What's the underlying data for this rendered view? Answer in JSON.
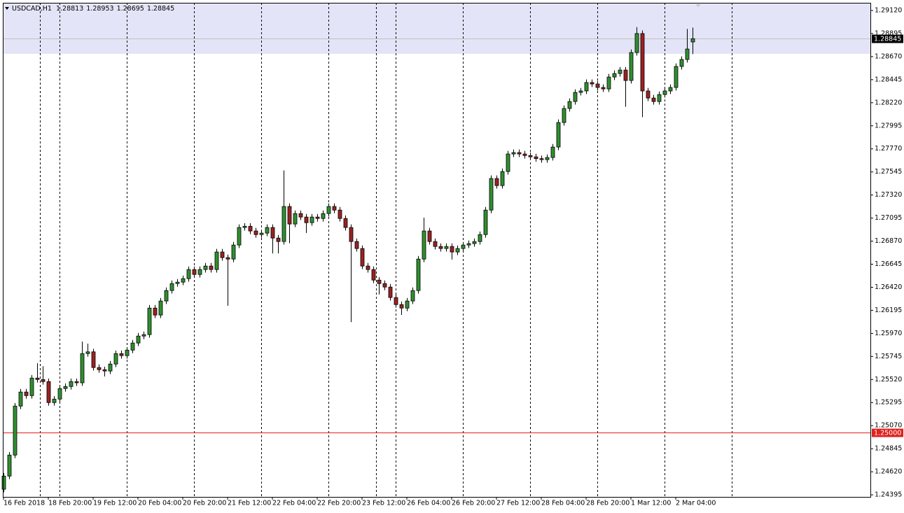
{
  "chart_data": {
    "type": "candlestick",
    "symbol": "USDCAD,H1",
    "categories": [
      "16 Feb 2018",
      null,
      null,
      null,
      null,
      null,
      null,
      null,
      "18 Feb 20:00",
      null,
      null,
      null,
      null,
      null,
      null,
      null,
      "19 Feb 12:00",
      null,
      null,
      null,
      null,
      null,
      null,
      null,
      "20 Feb 04:00",
      null,
      null,
      null,
      null,
      null,
      null,
      null,
      "20 Feb 20:00",
      null,
      null,
      null,
      null,
      null,
      null,
      null,
      "21 Feb 12:00",
      null,
      null,
      null,
      null,
      null,
      null,
      null,
      "22 Feb 04:00",
      null,
      null,
      null,
      null,
      null,
      null,
      null,
      "22 Feb 20:00",
      null,
      null,
      null,
      null,
      null,
      null,
      null,
      "23 Feb 12:00",
      null,
      null,
      null,
      null,
      null,
      null,
      null,
      "26 Feb 04:00",
      null,
      null,
      null,
      null,
      null,
      null,
      null,
      "26 Feb 20:00",
      null,
      null,
      null,
      null,
      null,
      null,
      null,
      "27 Feb 12:00",
      null,
      null,
      null,
      null,
      null,
      null,
      null,
      "28 Feb 04:00",
      null,
      null,
      null,
      null,
      null,
      null,
      null,
      "28 Feb 20:00",
      null,
      null,
      null,
      null,
      null,
      null,
      null,
      "1 Mar 12:00",
      null,
      null,
      null,
      null,
      null,
      null,
      null,
      "2 Mar 04:00",
      null,
      null,
      null
    ],
    "open": [
      1.2445,
      1.24578,
      1.24783,
      1.25261,
      1.25398,
      1.25363,
      1.25534,
      1.2552,
      1.255,
      1.25295,
      1.25329,
      1.25432,
      1.25452,
      1.255,
      1.25488,
      1.25773,
      1.2579,
      1.25637,
      1.25616,
      1.25603,
      1.25671,
      1.25773,
      1.25753,
      1.25807,
      1.25876,
      1.25944,
      1.25958,
      1.26217,
      1.26149,
      1.26286,
      1.26388,
      1.26456,
      1.2647,
      1.26504,
      1.26593,
      1.26545,
      1.26593,
      1.26627,
      1.26593,
      1.26764,
      1.26709,
      1.26695,
      1.26832,
      1.27003,
      1.27015,
      1.26969,
      1.26934,
      1.26948,
      1.27003,
      1.269,
      1.26866,
      1.27208,
      1.27037,
      1.27139,
      1.27105,
      1.2705,
      1.27105,
      1.27091,
      1.27139,
      1.27208,
      1.27173,
      1.27091,
      1.27003,
      1.26866,
      1.26798,
      1.26627,
      1.26593,
      1.2649,
      1.26456,
      1.26422,
      1.2632,
      1.26251,
      1.26217,
      1.26286,
      1.26388,
      1.26695,
      1.26969,
      1.26866,
      1.26818,
      1.26798,
      1.26818,
      1.26764,
      1.26798,
      1.26832,
      1.26846,
      1.26866,
      1.26934,
      1.27173,
      1.27481,
      1.27412,
      1.27549,
      1.2772,
      1.27734,
      1.2772,
      1.27705,
      1.27692,
      1.27675,
      1.27665,
      1.27686,
      1.27788,
      1.28027,
      1.28164,
      1.28232,
      1.28321,
      1.28335,
      1.28417,
      1.28403,
      1.28369,
      1.28355,
      1.28471,
      1.28505,
      1.28539,
      1.28437,
      1.2871,
      1.28895,
      1.28335,
      1.28266,
      1.28232,
      1.283,
      1.28335,
      1.28369,
      1.28574,
      1.28642,
      1.28813
    ],
    "high": [
      1.24608,
      1.24813,
      1.25291,
      1.25428,
      1.25428,
      1.25564,
      1.2568,
      1.2565,
      1.2553,
      1.25359,
      1.25462,
      1.25482,
      1.2553,
      1.2553,
      1.2589,
      1.2587,
      1.2582,
      1.25667,
      1.25646,
      1.25701,
      1.25803,
      1.25803,
      1.25837,
      1.25906,
      1.25974,
      1.25988,
      1.26247,
      1.26247,
      1.26316,
      1.26418,
      1.26486,
      1.265,
      1.26534,
      1.26623,
      1.26623,
      1.26623,
      1.26657,
      1.26657,
      1.26794,
      1.26794,
      1.26739,
      1.26862,
      1.27033,
      1.27045,
      1.27045,
      1.26999,
      1.26978,
      1.27033,
      1.27033,
      1.2693,
      1.2756,
      1.27238,
      1.27169,
      1.27169,
      1.27135,
      1.27135,
      1.27135,
      1.27169,
      1.27238,
      1.27238,
      1.27203,
      1.27121,
      1.27033,
      1.26896,
      1.26828,
      1.26657,
      1.26623,
      1.2652,
      1.26486,
      1.26452,
      1.2635,
      1.26281,
      1.26316,
      1.26418,
      1.26725,
      1.27099,
      1.26999,
      1.26896,
      1.26848,
      1.26848,
      1.26848,
      1.26828,
      1.26862,
      1.26876,
      1.26896,
      1.26964,
      1.27203,
      1.27511,
      1.27511,
      1.27579,
      1.2775,
      1.27764,
      1.27764,
      1.2775,
      1.27735,
      1.27722,
      1.27705,
      1.27716,
      1.27818,
      1.28057,
      1.28194,
      1.28262,
      1.28351,
      1.28365,
      1.28447,
      1.28447,
      1.28433,
      1.28399,
      1.28501,
      1.28535,
      1.28569,
      1.28569,
      1.2874,
      1.28958,
      1.28925,
      1.28365,
      1.28296,
      1.2833,
      1.28365,
      1.28399,
      1.28604,
      1.28672,
      1.2894,
      1.28953
    ],
    "low": [
      1.2442,
      1.24548,
      1.24753,
      1.25231,
      1.25333,
      1.25333,
      1.2549,
      1.2547,
      1.25265,
      1.25265,
      1.25299,
      1.25402,
      1.25422,
      1.25458,
      1.25458,
      1.25743,
      1.25607,
      1.25586,
      1.2555,
      1.25573,
      1.25641,
      1.25723,
      1.25723,
      1.25777,
      1.25846,
      1.25914,
      1.25928,
      1.26119,
      1.26119,
      1.26256,
      1.26358,
      1.26426,
      1.2644,
      1.26474,
      1.26515,
      1.26515,
      1.26563,
      1.26563,
      1.26563,
      1.26679,
      1.2624,
      1.26665,
      1.26802,
      1.26973,
      1.26939,
      1.26904,
      1.26904,
      1.26918,
      1.2675,
      1.2675,
      1.26836,
      1.2685,
      1.27007,
      1.27075,
      1.2695,
      1.2702,
      1.27061,
      1.27061,
      1.27109,
      1.27143,
      1.27061,
      1.26973,
      1.2608,
      1.26768,
      1.26597,
      1.26563,
      1.2646,
      1.2635,
      1.26392,
      1.2629,
      1.26221,
      1.2615,
      1.26187,
      1.26256,
      1.26358,
      1.26665,
      1.26836,
      1.26788,
      1.26768,
      1.26768,
      1.2669,
      1.26734,
      1.26768,
      1.26802,
      1.26816,
      1.26836,
      1.26904,
      1.27143,
      1.27382,
      1.27382,
      1.27519,
      1.2769,
      1.2769,
      1.27675,
      1.27662,
      1.27645,
      1.27635,
      1.27635,
      1.27656,
      1.27758,
      1.27997,
      1.28134,
      1.28202,
      1.28291,
      1.28305,
      1.28373,
      1.28339,
      1.28325,
      1.28325,
      1.28441,
      1.28475,
      1.2818,
      1.28407,
      1.2868,
      1.2808,
      1.28236,
      1.28202,
      1.28202,
      1.2827,
      1.28305,
      1.28339,
      1.28544,
      1.28612,
      1.28695
    ],
    "close": [
      1.24578,
      1.24783,
      1.25261,
      1.25398,
      1.25363,
      1.25534,
      1.2552,
      1.255,
      1.25295,
      1.25329,
      1.25432,
      1.25452,
      1.255,
      1.25488,
      1.25773,
      1.2579,
      1.25637,
      1.25616,
      1.25603,
      1.25671,
      1.25773,
      1.25753,
      1.25807,
      1.25876,
      1.25944,
      1.25958,
      1.26217,
      1.26149,
      1.26286,
      1.26388,
      1.26456,
      1.2647,
      1.26504,
      1.26593,
      1.26545,
      1.26593,
      1.26627,
      1.26593,
      1.26764,
      1.26709,
      1.26695,
      1.26832,
      1.27003,
      1.27015,
      1.26969,
      1.26934,
      1.26948,
      1.27003,
      1.269,
      1.26866,
      1.27208,
      1.27037,
      1.27139,
      1.27105,
      1.2705,
      1.27105,
      1.27091,
      1.27139,
      1.27208,
      1.27173,
      1.27091,
      1.27003,
      1.26866,
      1.26798,
      1.26627,
      1.26593,
      1.2649,
      1.26456,
      1.26422,
      1.2632,
      1.26251,
      1.26217,
      1.26286,
      1.26388,
      1.26695,
      1.26969,
      1.26866,
      1.26818,
      1.26798,
      1.26818,
      1.26764,
      1.26798,
      1.26832,
      1.26846,
      1.26866,
      1.26934,
      1.27173,
      1.27481,
      1.27412,
      1.27549,
      1.2772,
      1.27734,
      1.2772,
      1.27705,
      1.27692,
      1.27675,
      1.27665,
      1.27686,
      1.27788,
      1.28027,
      1.28164,
      1.28232,
      1.28321,
      1.28335,
      1.28417,
      1.28403,
      1.28369,
      1.28355,
      1.28471,
      1.28505,
      1.28539,
      1.28437,
      1.2871,
      1.28895,
      1.28335,
      1.28266,
      1.28232,
      1.283,
      1.28335,
      1.28369,
      1.28574,
      1.28642,
      1.28744,
      1.28845
    ],
    "up_color": "#2f8f2f",
    "down_color": "#9b2222",
    "ylim": [
      1.24375,
      1.29195
    ],
    "yticks": [
      {
        "value": 1.24395,
        "label": "1.24395"
      },
      {
        "value": 1.2462,
        "label": "1.24620"
      },
      {
        "value": 1.24845,
        "label": "1.24845"
      },
      {
        "value": 1.2507,
        "label": "1.25070"
      },
      {
        "value": 1.25295,
        "label": "1.25295"
      },
      {
        "value": 1.2552,
        "label": "1.25520"
      },
      {
        "value": 1.25745,
        "label": "1.25745"
      },
      {
        "value": 1.2597,
        "label": "1.25970"
      },
      {
        "value": 1.26195,
        "label": "1.26195"
      },
      {
        "value": 1.2642,
        "label": "1.26420"
      },
      {
        "value": 1.26645,
        "label": "1.26645"
      },
      {
        "value": 1.2687,
        "label": "1.26870"
      },
      {
        "value": 1.27095,
        "label": "1.27095"
      },
      {
        "value": 1.2732,
        "label": "1.27320"
      },
      {
        "value": 1.27545,
        "label": "1.27545"
      },
      {
        "value": 1.2777,
        "label": "1.27770"
      },
      {
        "value": 1.27995,
        "label": "1.27995"
      },
      {
        "value": 1.2822,
        "label": "1.28220"
      },
      {
        "value": 1.28445,
        "label": "1.28445"
      },
      {
        "value": 1.2867,
        "label": "1.28670"
      },
      {
        "value": 1.28895,
        "label": "1.28895"
      },
      {
        "value": 1.2912,
        "label": "1.29120"
      }
    ],
    "hline": {
      "value": 1.25,
      "label": "1.25000",
      "color": "#e02020"
    },
    "zone": {
      "from": 1.28697,
      "to": 1.29195,
      "color": "#e4e4f8"
    }
  }
}
